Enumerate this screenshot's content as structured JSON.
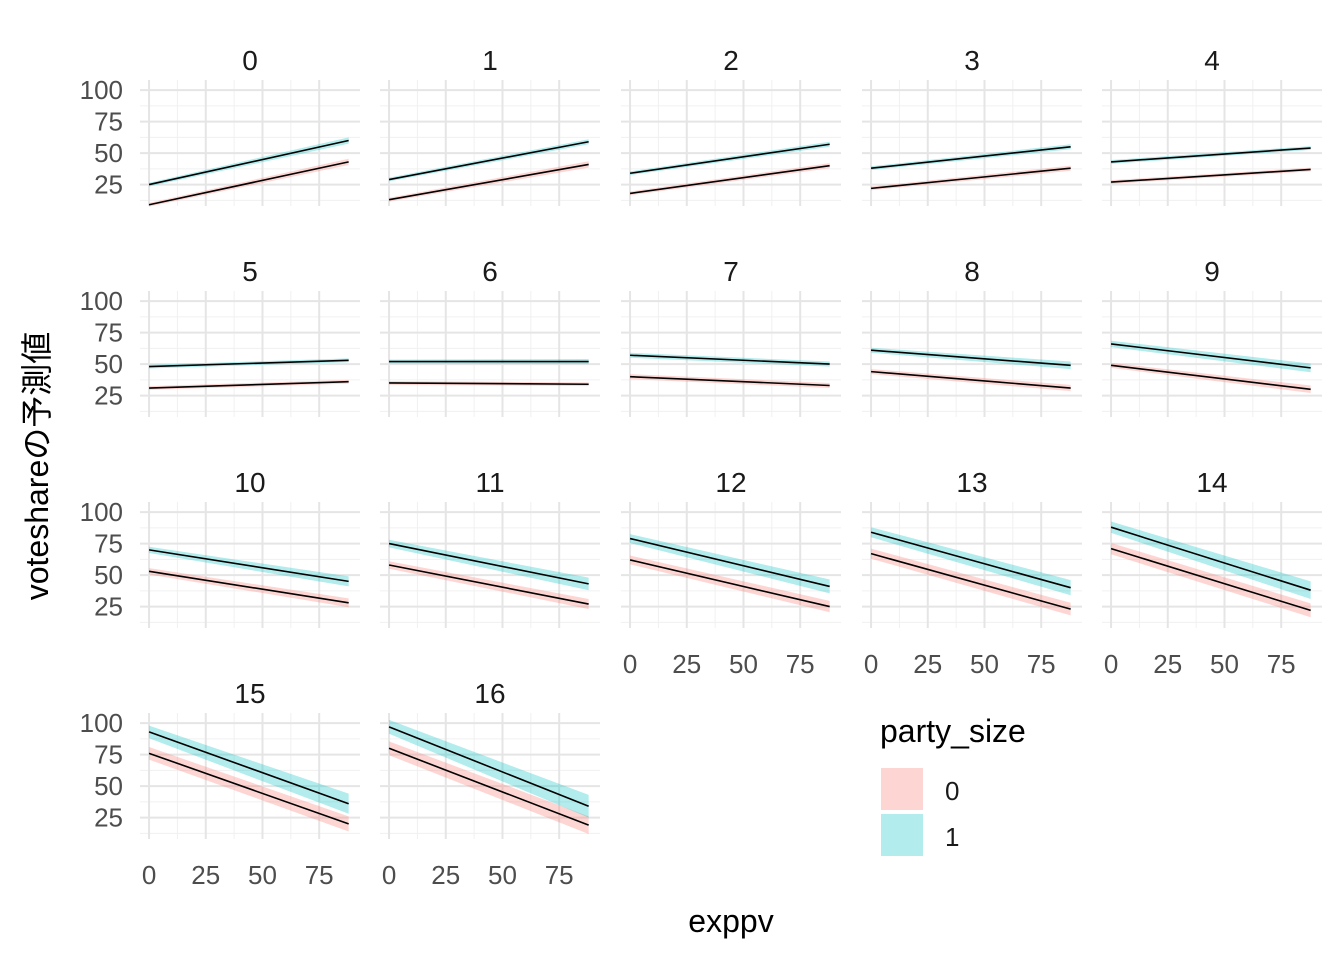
{
  "chart_data": {
    "type": "line",
    "facet_variable_values": [
      "0",
      "1",
      "2",
      "3",
      "4",
      "5",
      "6",
      "7",
      "8",
      "9",
      "10",
      "11",
      "12",
      "13",
      "14",
      "15",
      "16"
    ],
    "xlabel": "exppv",
    "ylabel": "voteshareの予測値",
    "x_ticks": [
      0,
      25,
      50,
      75
    ],
    "y_ticks": [
      25,
      50,
      75,
      100
    ],
    "xlim": [
      -4,
      93
    ],
    "ylim": [
      8,
      108
    ],
    "grid": true,
    "legend": {
      "title": "party_size",
      "position": "bottom-right",
      "entries": [
        {
          "label": "0",
          "color": "#F8766D"
        },
        {
          "label": "1",
          "color": "#00BFC4"
        }
      ]
    },
    "line_color": "#000000",
    "series_colors": {
      "0": "#F8766D",
      "1": "#00BFC4"
    },
    "facets": [
      {
        "label": "0",
        "x": [
          0,
          88
        ],
        "party_size_0": [
          9,
          43
        ],
        "party_size_1": [
          25,
          60
        ],
        "band_0": [
          1.5,
          2.5
        ],
        "band_1": [
          1.5,
          2.5
        ]
      },
      {
        "label": "1",
        "x": [
          0,
          88
        ],
        "party_size_0": [
          13,
          41
        ],
        "party_size_1": [
          29,
          59
        ],
        "band_0": [
          1.5,
          2.5
        ],
        "band_1": [
          1.5,
          2
        ]
      },
      {
        "label": "2",
        "x": [
          0,
          88
        ],
        "party_size_0": [
          18,
          40
        ],
        "party_size_1": [
          34,
          57
        ],
        "band_0": [
          1.5,
          2
        ],
        "band_1": [
          1.5,
          2
        ]
      },
      {
        "label": "3",
        "x": [
          0,
          88
        ],
        "party_size_0": [
          22,
          38
        ],
        "party_size_1": [
          38,
          55
        ],
        "band_0": [
          1.5,
          2
        ],
        "band_1": [
          1.5,
          2
        ]
      },
      {
        "label": "4",
        "x": [
          0,
          88
        ],
        "party_size_0": [
          27,
          37
        ],
        "party_size_1": [
          43,
          54
        ],
        "band_0": [
          1.5,
          1.5
        ],
        "band_1": [
          1.5,
          1.5
        ]
      },
      {
        "label": "5",
        "x": [
          0,
          88
        ],
        "party_size_0": [
          31,
          36
        ],
        "party_size_1": [
          48,
          53
        ],
        "band_0": [
          1.5,
          1.5
        ],
        "band_1": [
          1.5,
          1.5
        ]
      },
      {
        "label": "6",
        "x": [
          0,
          88
        ],
        "party_size_0": [
          35,
          34
        ],
        "party_size_1": [
          52,
          52
        ],
        "band_0": [
          1.5,
          1.5
        ],
        "band_1": [
          1.5,
          2
        ]
      },
      {
        "label": "7",
        "x": [
          0,
          88
        ],
        "party_size_0": [
          40,
          33
        ],
        "party_size_1": [
          57,
          50
        ],
        "band_0": [
          2,
          2
        ],
        "band_1": [
          2,
          2
        ]
      },
      {
        "label": "8",
        "x": [
          0,
          88
        ],
        "party_size_0": [
          44,
          31
        ],
        "party_size_1": [
          61,
          49
        ],
        "band_0": [
          2,
          2.5
        ],
        "band_1": [
          2,
          3
        ]
      },
      {
        "label": "9",
        "x": [
          0,
          88
        ],
        "party_size_0": [
          49,
          30
        ],
        "party_size_1": [
          66,
          47
        ],
        "band_0": [
          2,
          3
        ],
        "band_1": [
          2.5,
          3.5
        ]
      },
      {
        "label": "10",
        "x": [
          0,
          88
        ],
        "party_size_0": [
          53,
          28
        ],
        "party_size_1": [
          70,
          45
        ],
        "band_0": [
          2.5,
          3.5
        ],
        "band_1": [
          2.5,
          4
        ]
      },
      {
        "label": "11",
        "x": [
          0,
          88
        ],
        "party_size_0": [
          58,
          27
        ],
        "party_size_1": [
          75,
          43
        ],
        "band_0": [
          3,
          4
        ],
        "band_1": [
          3,
          5
        ]
      },
      {
        "label": "12",
        "x": [
          0,
          88
        ],
        "party_size_0": [
          62,
          25
        ],
        "party_size_1": [
          79,
          41
        ],
        "band_0": [
          3.5,
          4.5
        ],
        "band_1": [
          3.5,
          5.5
        ]
      },
      {
        "label": "13",
        "x": [
          0,
          88
        ],
        "party_size_0": [
          67,
          23
        ],
        "party_size_1": [
          84,
          40
        ],
        "band_0": [
          4,
          5
        ],
        "band_1": [
          4,
          6
        ]
      },
      {
        "label": "14",
        "x": [
          0,
          88
        ],
        "party_size_0": [
          71,
          22
        ],
        "party_size_1": [
          88,
          38
        ],
        "band_0": [
          4.5,
          5.5
        ],
        "band_1": [
          4.5,
          7
        ]
      },
      {
        "label": "15",
        "x": [
          0,
          88
        ],
        "party_size_0": [
          76,
          20
        ],
        "party_size_1": [
          93,
          36
        ],
        "band_0": [
          5,
          6
        ],
        "band_1": [
          5,
          8
        ]
      },
      {
        "label": "16",
        "x": [
          0,
          88
        ],
        "party_size_0": [
          80,
          19
        ],
        "party_size_1": [
          97,
          34
        ],
        "band_0": [
          5.5,
          7
        ],
        "band_1": [
          5.5,
          9
        ]
      }
    ]
  }
}
